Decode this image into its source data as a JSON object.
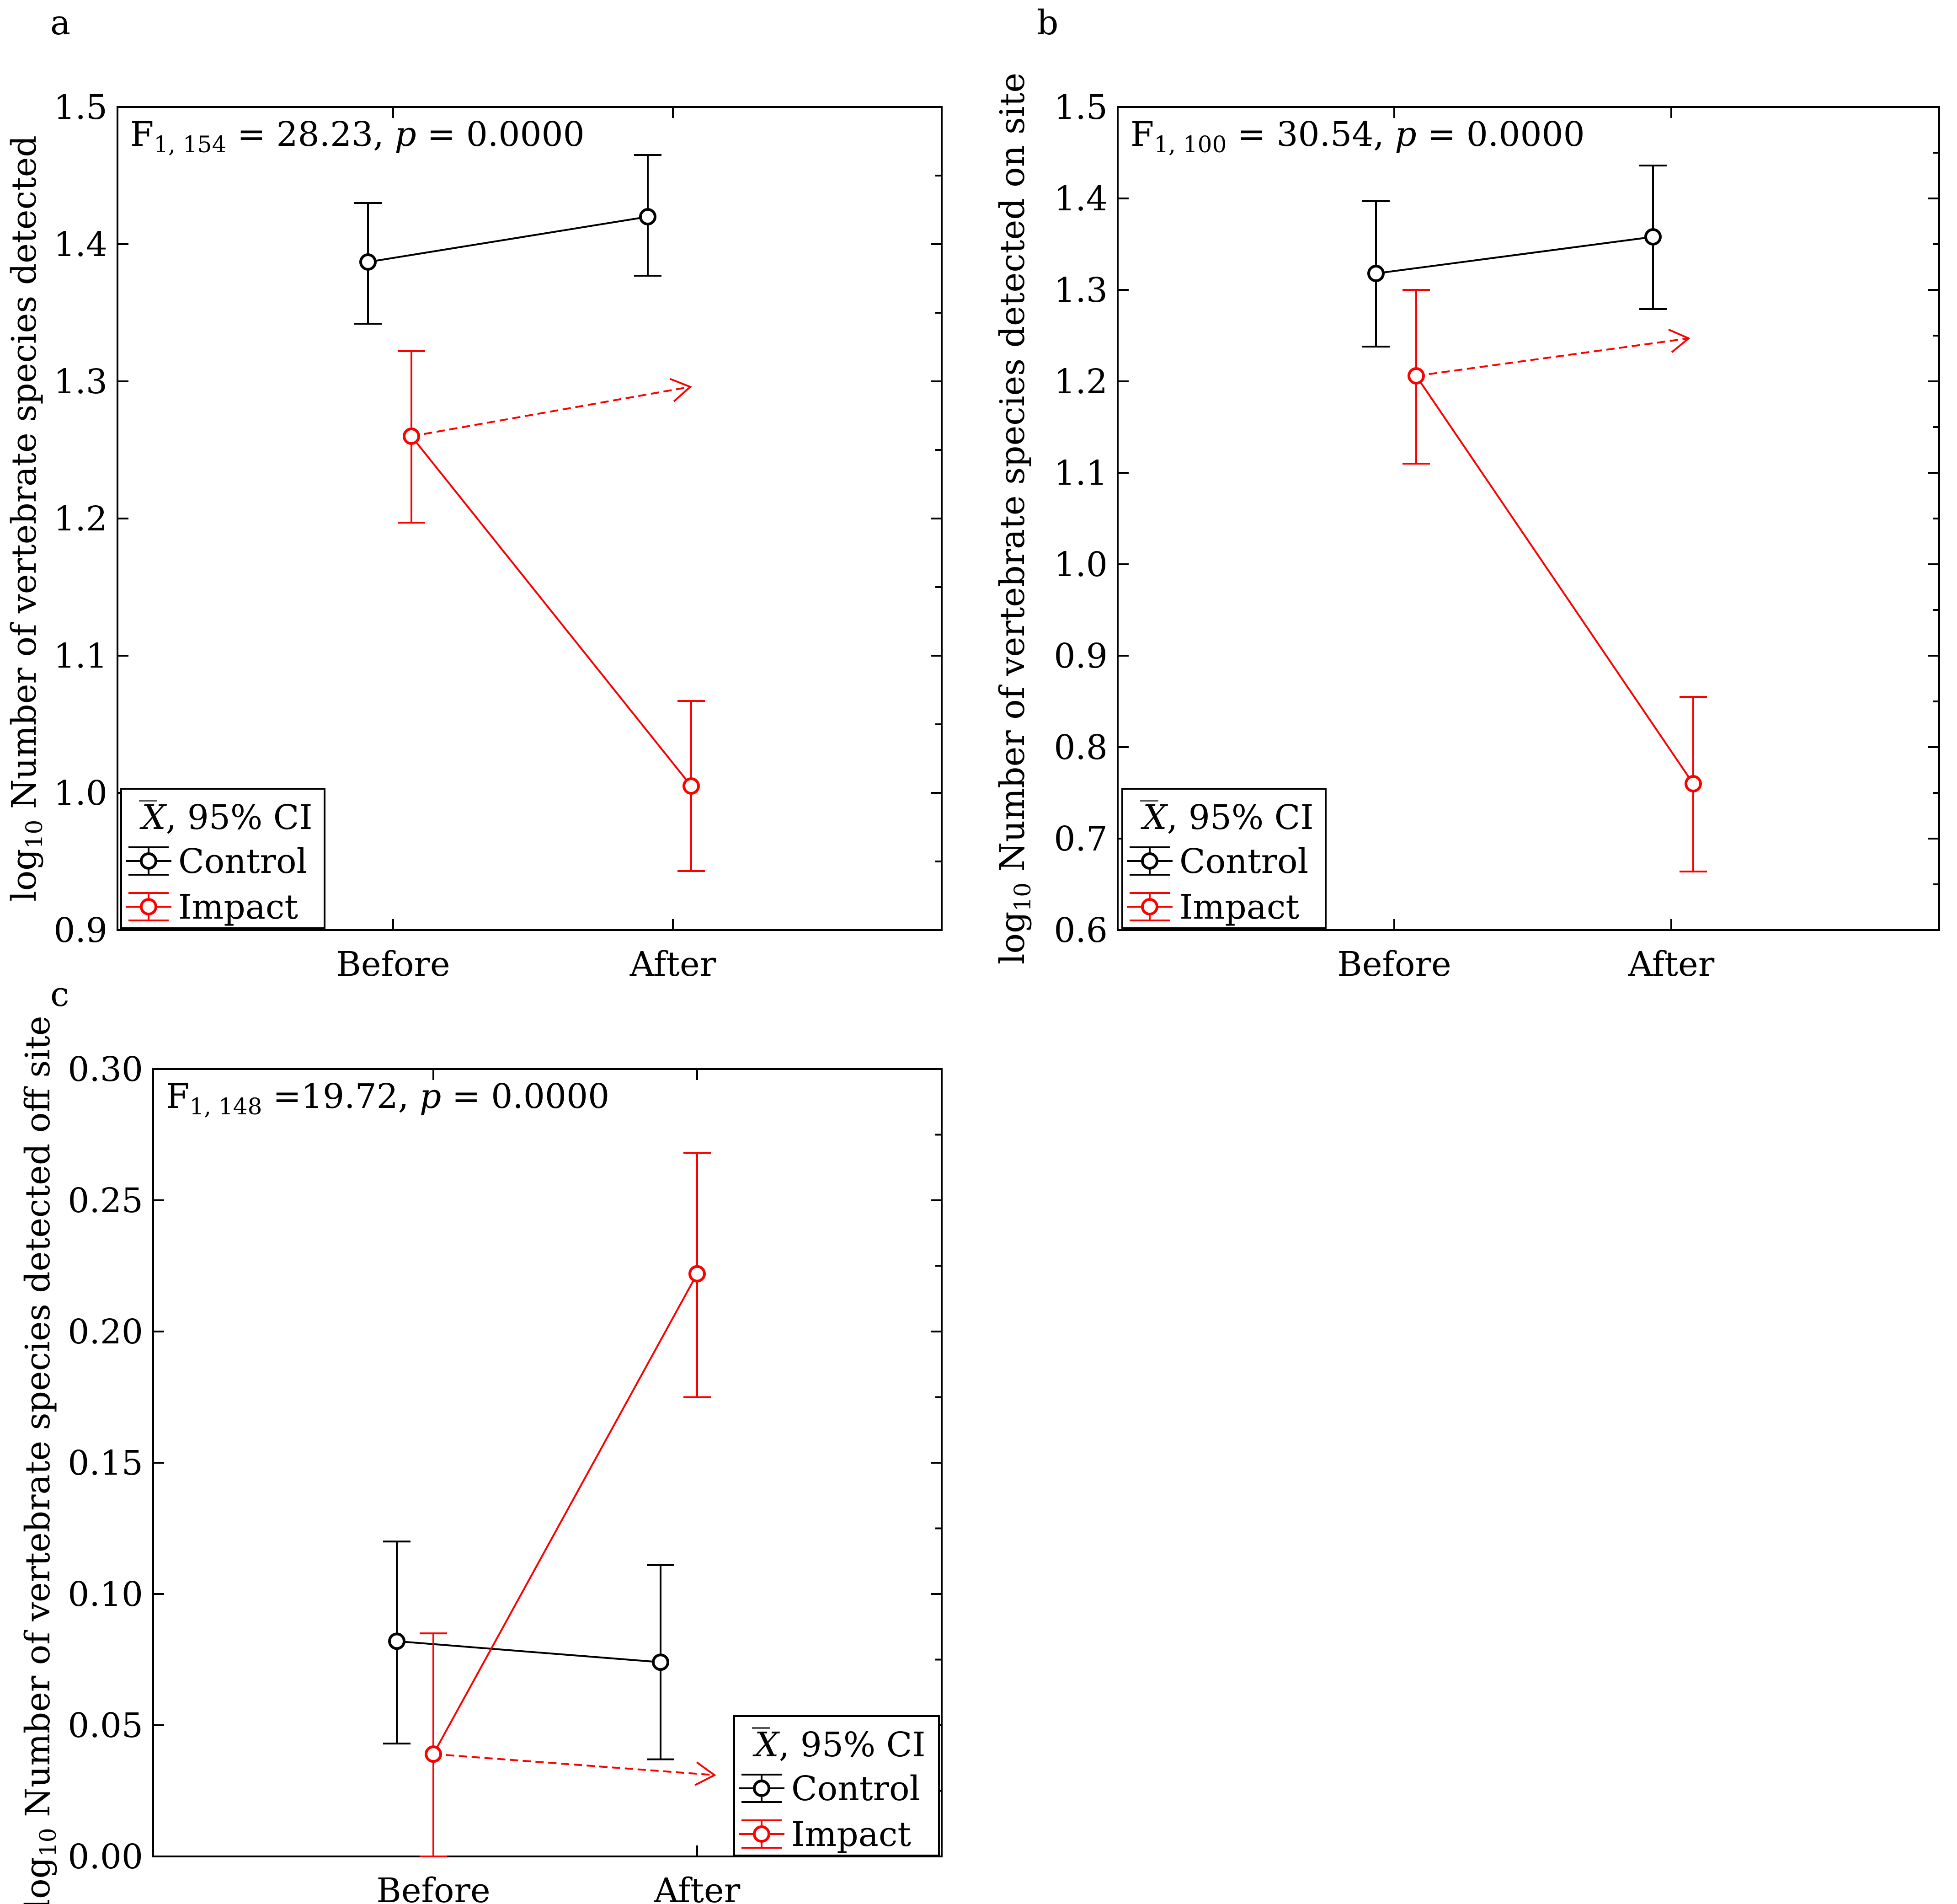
{
  "colors": {
    "control": "#000000",
    "impact": "#ff0000"
  },
  "chart_data": [
    {
      "panel_label": "a",
      "type": "line",
      "categories": [
        "Before",
        "After"
      ],
      "ylim": [
        0.9,
        1.5
      ],
      "yticks": [
        "0.9",
        "1.0",
        "1.1",
        "1.2",
        "1.3",
        "1.4",
        "1.5"
      ],
      "ytick_values": [
        0.9,
        1.0,
        1.1,
        1.2,
        1.3,
        1.4,
        1.5
      ],
      "ylabel_prefix": "log",
      "ylabel_sub": "10",
      "ylabel_text": " Number of vertebrate species detected",
      "stat": {
        "prefix": "F",
        "sub": "1, 154",
        "rest": " = 28.23, ",
        "p": "p",
        "tail": " = 0.0000"
      },
      "legend": {
        "title_symbol": "X",
        "title_rest": ", 95% CI",
        "entries": [
          "Control",
          "Impact"
        ],
        "position": "bottom-left"
      },
      "series": [
        {
          "name": "Control",
          "values": [
            1.387,
            1.42
          ],
          "ci_low": [
            1.342,
            1.377
          ],
          "ci_high": [
            1.43,
            1.465
          ]
        },
        {
          "name": "Impact",
          "values": [
            1.26,
            1.005
          ],
          "ci_low": [
            1.197,
            0.943
          ],
          "ci_high": [
            1.322,
            1.067
          ],
          "expected_after": 1.296
        }
      ]
    },
    {
      "panel_label": "b",
      "type": "line",
      "categories": [
        "Before",
        "After"
      ],
      "ylim": [
        0.6,
        1.5
      ],
      "yticks": [
        "0.6",
        "0.7",
        "0.8",
        "0.9",
        "1.0",
        "1.1",
        "1.2",
        "1.3",
        "1.4",
        "1.5"
      ],
      "ytick_values": [
        0.6,
        0.7,
        0.8,
        0.9,
        1.0,
        1.1,
        1.2,
        1.3,
        1.4,
        1.5
      ],
      "ylabel_prefix": "log",
      "ylabel_sub": "10",
      "ylabel_text": " Number of vertebrate species detected on site",
      "stat": {
        "prefix": "F",
        "sub": "1, 100",
        "rest": " = 30.54, ",
        "p": "p",
        "tail": " = 0.0000"
      },
      "legend": {
        "title_symbol": "X",
        "title_rest": ", 95% CI",
        "entries": [
          "Control",
          "Impact"
        ],
        "position": "bottom-left"
      },
      "series": [
        {
          "name": "Control",
          "values": [
            1.318,
            1.358
          ],
          "ci_low": [
            1.238,
            1.279
          ],
          "ci_high": [
            1.397,
            1.436
          ]
        },
        {
          "name": "Impact",
          "values": [
            1.206,
            0.76
          ],
          "ci_low": [
            1.11,
            0.664
          ],
          "ci_high": [
            1.3,
            0.855
          ],
          "expected_after": 1.247
        }
      ]
    },
    {
      "panel_label": "c",
      "type": "line",
      "categories": [
        "Before",
        "After"
      ],
      "ylim": [
        0.0,
        0.3
      ],
      "yticks": [
        "0.00",
        "0.05",
        "0.10",
        "0.15",
        "0.20",
        "0.25",
        "0.30"
      ],
      "ytick_values": [
        0.0,
        0.05,
        0.1,
        0.15,
        0.2,
        0.25,
        0.3
      ],
      "ylabel_prefix": "log",
      "ylabel_sub": "10",
      "ylabel_text": " Number of vertebrate species detected off site",
      "stat": {
        "prefix": "F",
        "sub": "1, 148",
        "rest": " =19.72, ",
        "p": "p",
        "tail": " = 0.0000"
      },
      "legend": {
        "title_symbol": "X",
        "title_rest": ", 95% CI",
        "entries": [
          "Control",
          "Impact"
        ],
        "position": "bottom-right"
      },
      "series": [
        {
          "name": "Control",
          "values": [
            0.082,
            0.074
          ],
          "ci_low": [
            0.043,
            0.037
          ],
          "ci_high": [
            0.12,
            0.111
          ]
        },
        {
          "name": "Impact",
          "values": [
            0.039,
            0.222
          ],
          "ci_low": [
            0.0,
            0.175
          ],
          "ci_high": [
            0.085,
            0.268
          ],
          "expected_after": 0.031
        }
      ]
    }
  ]
}
